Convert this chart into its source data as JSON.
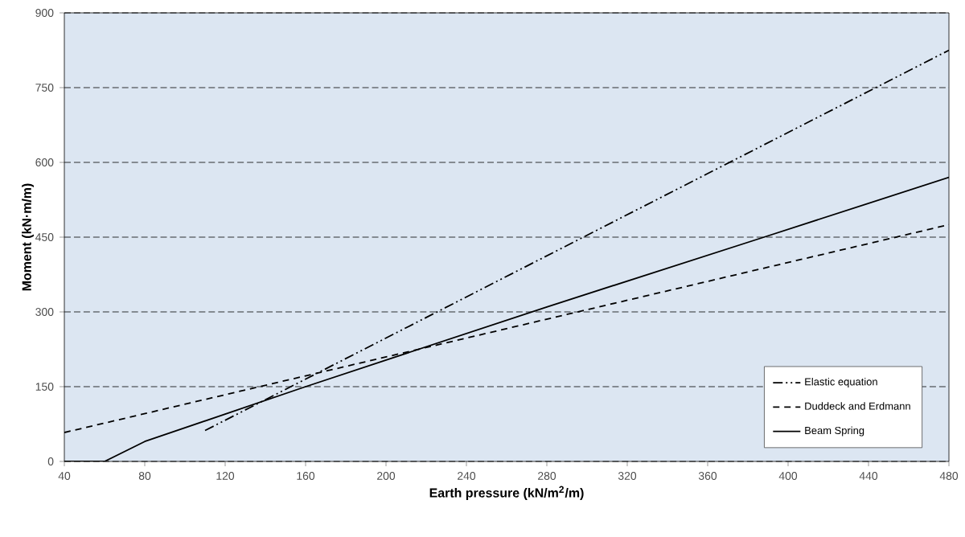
{
  "chart_data": {
    "type": "line",
    "xlabel": "Earth pressure (kN/m$^{2}$/m)",
    "ylabel": "Moment (kN·m/m)",
    "xlim": [
      40,
      480
    ],
    "ylim": [
      0,
      900
    ],
    "xticks": [
      40,
      80,
      120,
      160,
      200,
      240,
      280,
      320,
      360,
      400,
      440,
      480
    ],
    "yticks": [
      0,
      150,
      300,
      450,
      600,
      750,
      900
    ],
    "grid": "y",
    "legend": "bottom right",
    "marker": "none",
    "series": [
      {
        "name": "Elastic equation",
        "color": "#000000",
        "line_style": "dashdotdot",
        "x": [
          110,
          480
        ],
        "values": [
          62,
          825
        ]
      },
      {
        "name": "Duddeck and Erdmann",
        "color": "#000000",
        "line_style": "dashed",
        "x": [
          40,
          480
        ],
        "values": [
          58,
          475
        ]
      },
      {
        "name": "Beam Spring",
        "color": "#000000",
        "line_style": "solid",
        "x": [
          40,
          60,
          80,
          120,
          160,
          280,
          388,
          480
        ],
        "values": [
          0,
          0,
          40,
          95,
          150,
          310,
          450,
          570
        ]
      }
    ]
  }
}
